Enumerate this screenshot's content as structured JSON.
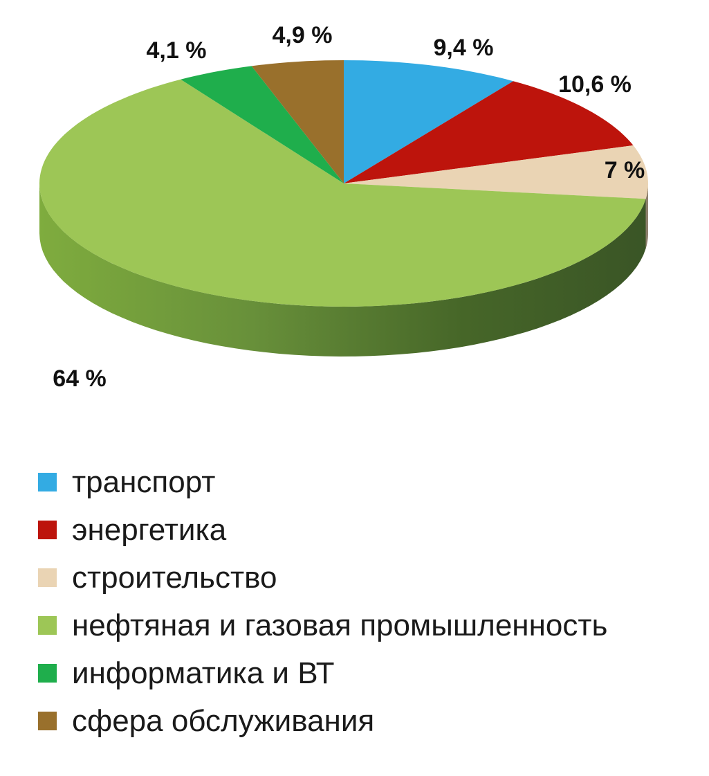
{
  "chart_data": {
    "type": "pie",
    "style": "3d",
    "start_angle_deg": 0,
    "direction": "clockwise",
    "slices": [
      {
        "name": "транспорт",
        "value": 9.4,
        "label": "9,4 %",
        "color": "#33ABE3"
      },
      {
        "name": "энергетика",
        "value": 10.6,
        "label": "10,6 %",
        "color": "#BD140C"
      },
      {
        "name": "строительство",
        "value": 7,
        "label": "7 %",
        "color": "#EAD4B4"
      },
      {
        "name": "нефтяная и газовая промышленность",
        "value": 64,
        "label": "64 %",
        "color": "#9DC656"
      },
      {
        "name": "информатика и ВТ",
        "value": 4.1,
        "label": "4,1 %",
        "color": "#1FAE4C"
      },
      {
        "name": "сфера обслуживания",
        "value": 4.9,
        "label": "4,9 %",
        "color": "#99702C"
      }
    ],
    "legend_position": "bottom"
  }
}
